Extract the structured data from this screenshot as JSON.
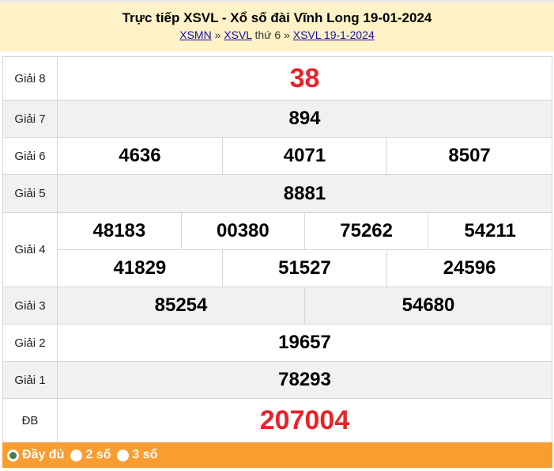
{
  "header": {
    "title": "Trực tiếp XSVL - Xổ số đài Vĩnh Long 19-01-2024",
    "breadcrumb": {
      "link1": "XSMN",
      "sep1": "»",
      "link2": "XSVL",
      "text": "thứ 6",
      "sep2": "»",
      "link3": "XSVL 19-1-2024"
    }
  },
  "prizes": [
    {
      "label": "Giải 8",
      "numbers": [
        "38"
      ]
    },
    {
      "label": "Giải 7",
      "numbers": [
        "894"
      ]
    },
    {
      "label": "Giải 6",
      "numbers": [
        "4636",
        "4071",
        "8507"
      ]
    },
    {
      "label": "Giải 5",
      "numbers": [
        "8881"
      ]
    },
    {
      "label": "Giải 4",
      "numbers": [
        "48183",
        "00380",
        "75262",
        "54211",
        "41829",
        "51527",
        "24596"
      ]
    },
    {
      "label": "Giải 3",
      "numbers": [
        "85254",
        "54680"
      ]
    },
    {
      "label": "Giải 2",
      "numbers": [
        "19657"
      ]
    },
    {
      "label": "Giải 1",
      "numbers": [
        "78293"
      ]
    },
    {
      "label": "ĐB",
      "numbers": [
        "207004"
      ]
    }
  ],
  "footer": {
    "options": [
      {
        "label": "Đầy đủ",
        "selected": true
      },
      {
        "label": "2 số",
        "selected": false
      },
      {
        "label": "3 số",
        "selected": false
      }
    ]
  },
  "colors": {
    "header_bg": "#fff2c6",
    "footer_bg": "#f99d31",
    "highlight": "#e8232a"
  }
}
